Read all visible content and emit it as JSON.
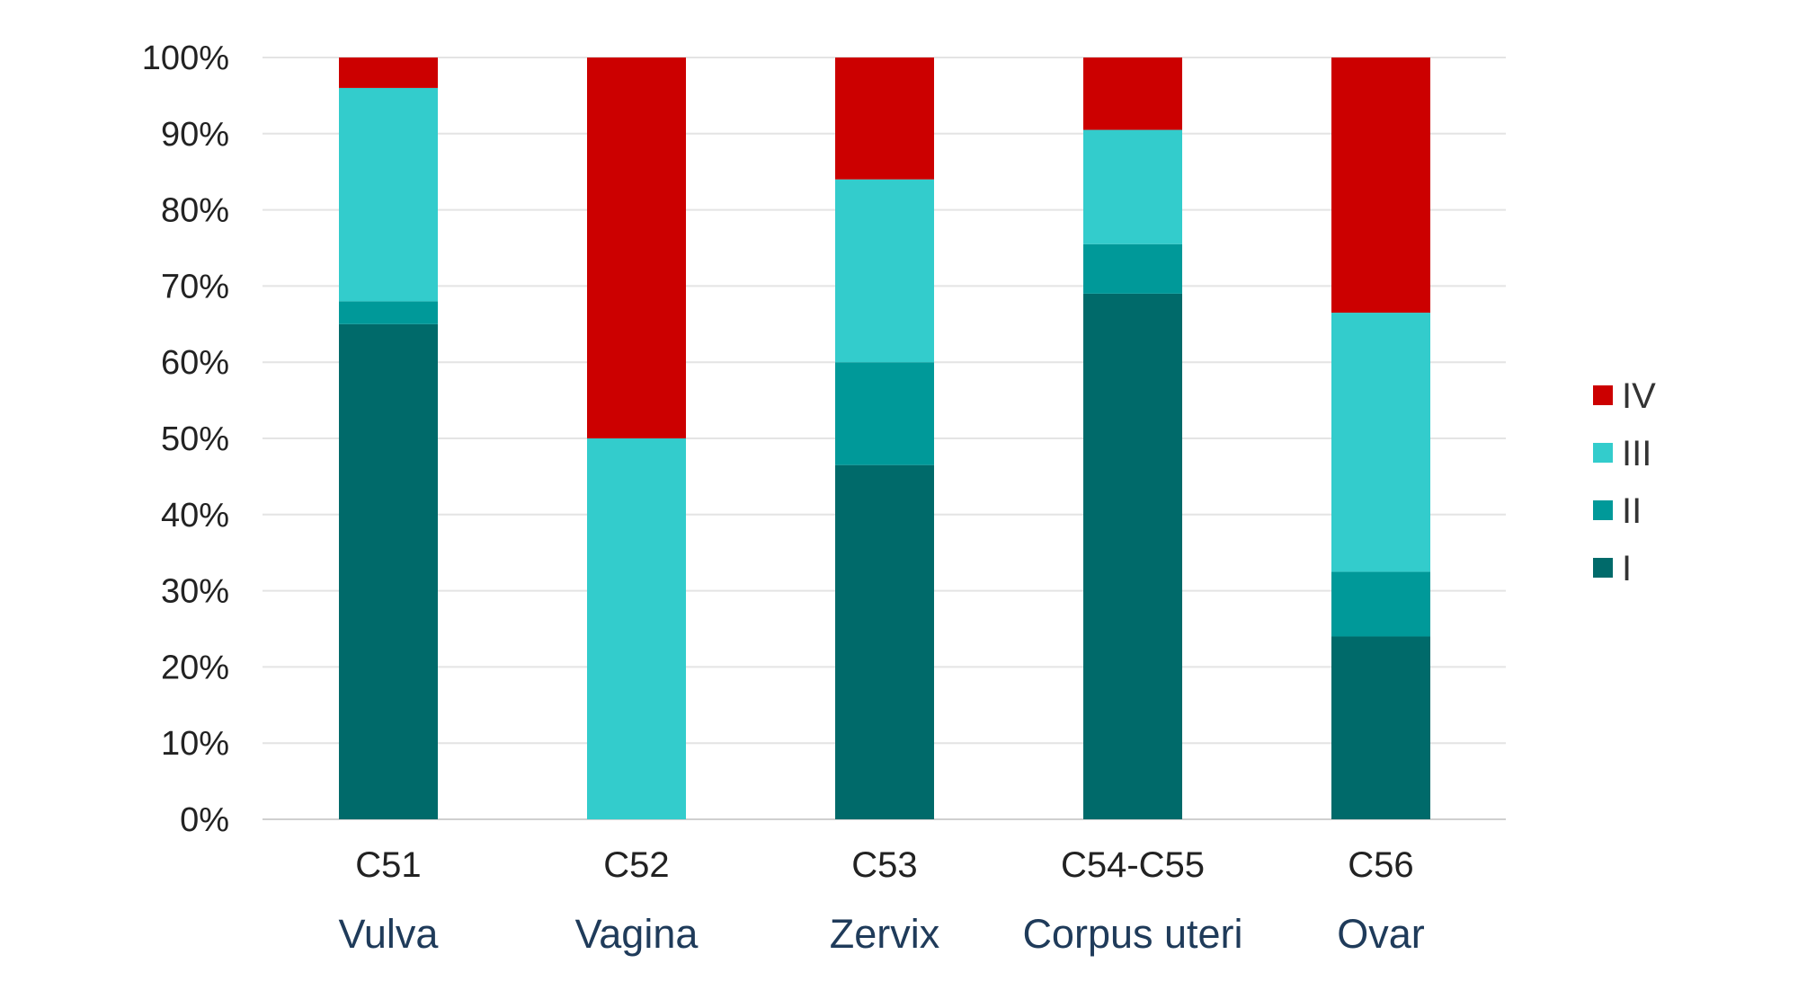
{
  "chart_data": {
    "type": "bar",
    "stacked": true,
    "percent": true,
    "categories": [
      "C51",
      "C52",
      "C53",
      "C54-C55",
      "C56"
    ],
    "category_names": [
      "Vulva",
      "Vagina",
      "Zervix",
      "Corpus uteri",
      "Ovar"
    ],
    "series": [
      {
        "name": "I",
        "color": "#006a6a",
        "values": [
          65,
          0,
          46.5,
          69,
          24
        ]
      },
      {
        "name": "II",
        "color": "#009999",
        "values": [
          3,
          0,
          13.5,
          6.5,
          8.5
        ]
      },
      {
        "name": "III",
        "color": "#33cccc",
        "values": [
          28,
          50,
          24,
          15,
          34
        ]
      },
      {
        "name": "IV",
        "color": "#cc0000",
        "values": [
          4,
          50,
          16,
          9.5,
          33.5
        ]
      }
    ],
    "y_ticks": [
      "0%",
      "10%",
      "20%",
      "30%",
      "40%",
      "50%",
      "60%",
      "70%",
      "80%",
      "90%",
      "100%"
    ],
    "ylim": [
      0,
      100
    ],
    "grid": true,
    "legend_position": "right",
    "legend_order": [
      "IV",
      "III",
      "II",
      "I"
    ]
  }
}
